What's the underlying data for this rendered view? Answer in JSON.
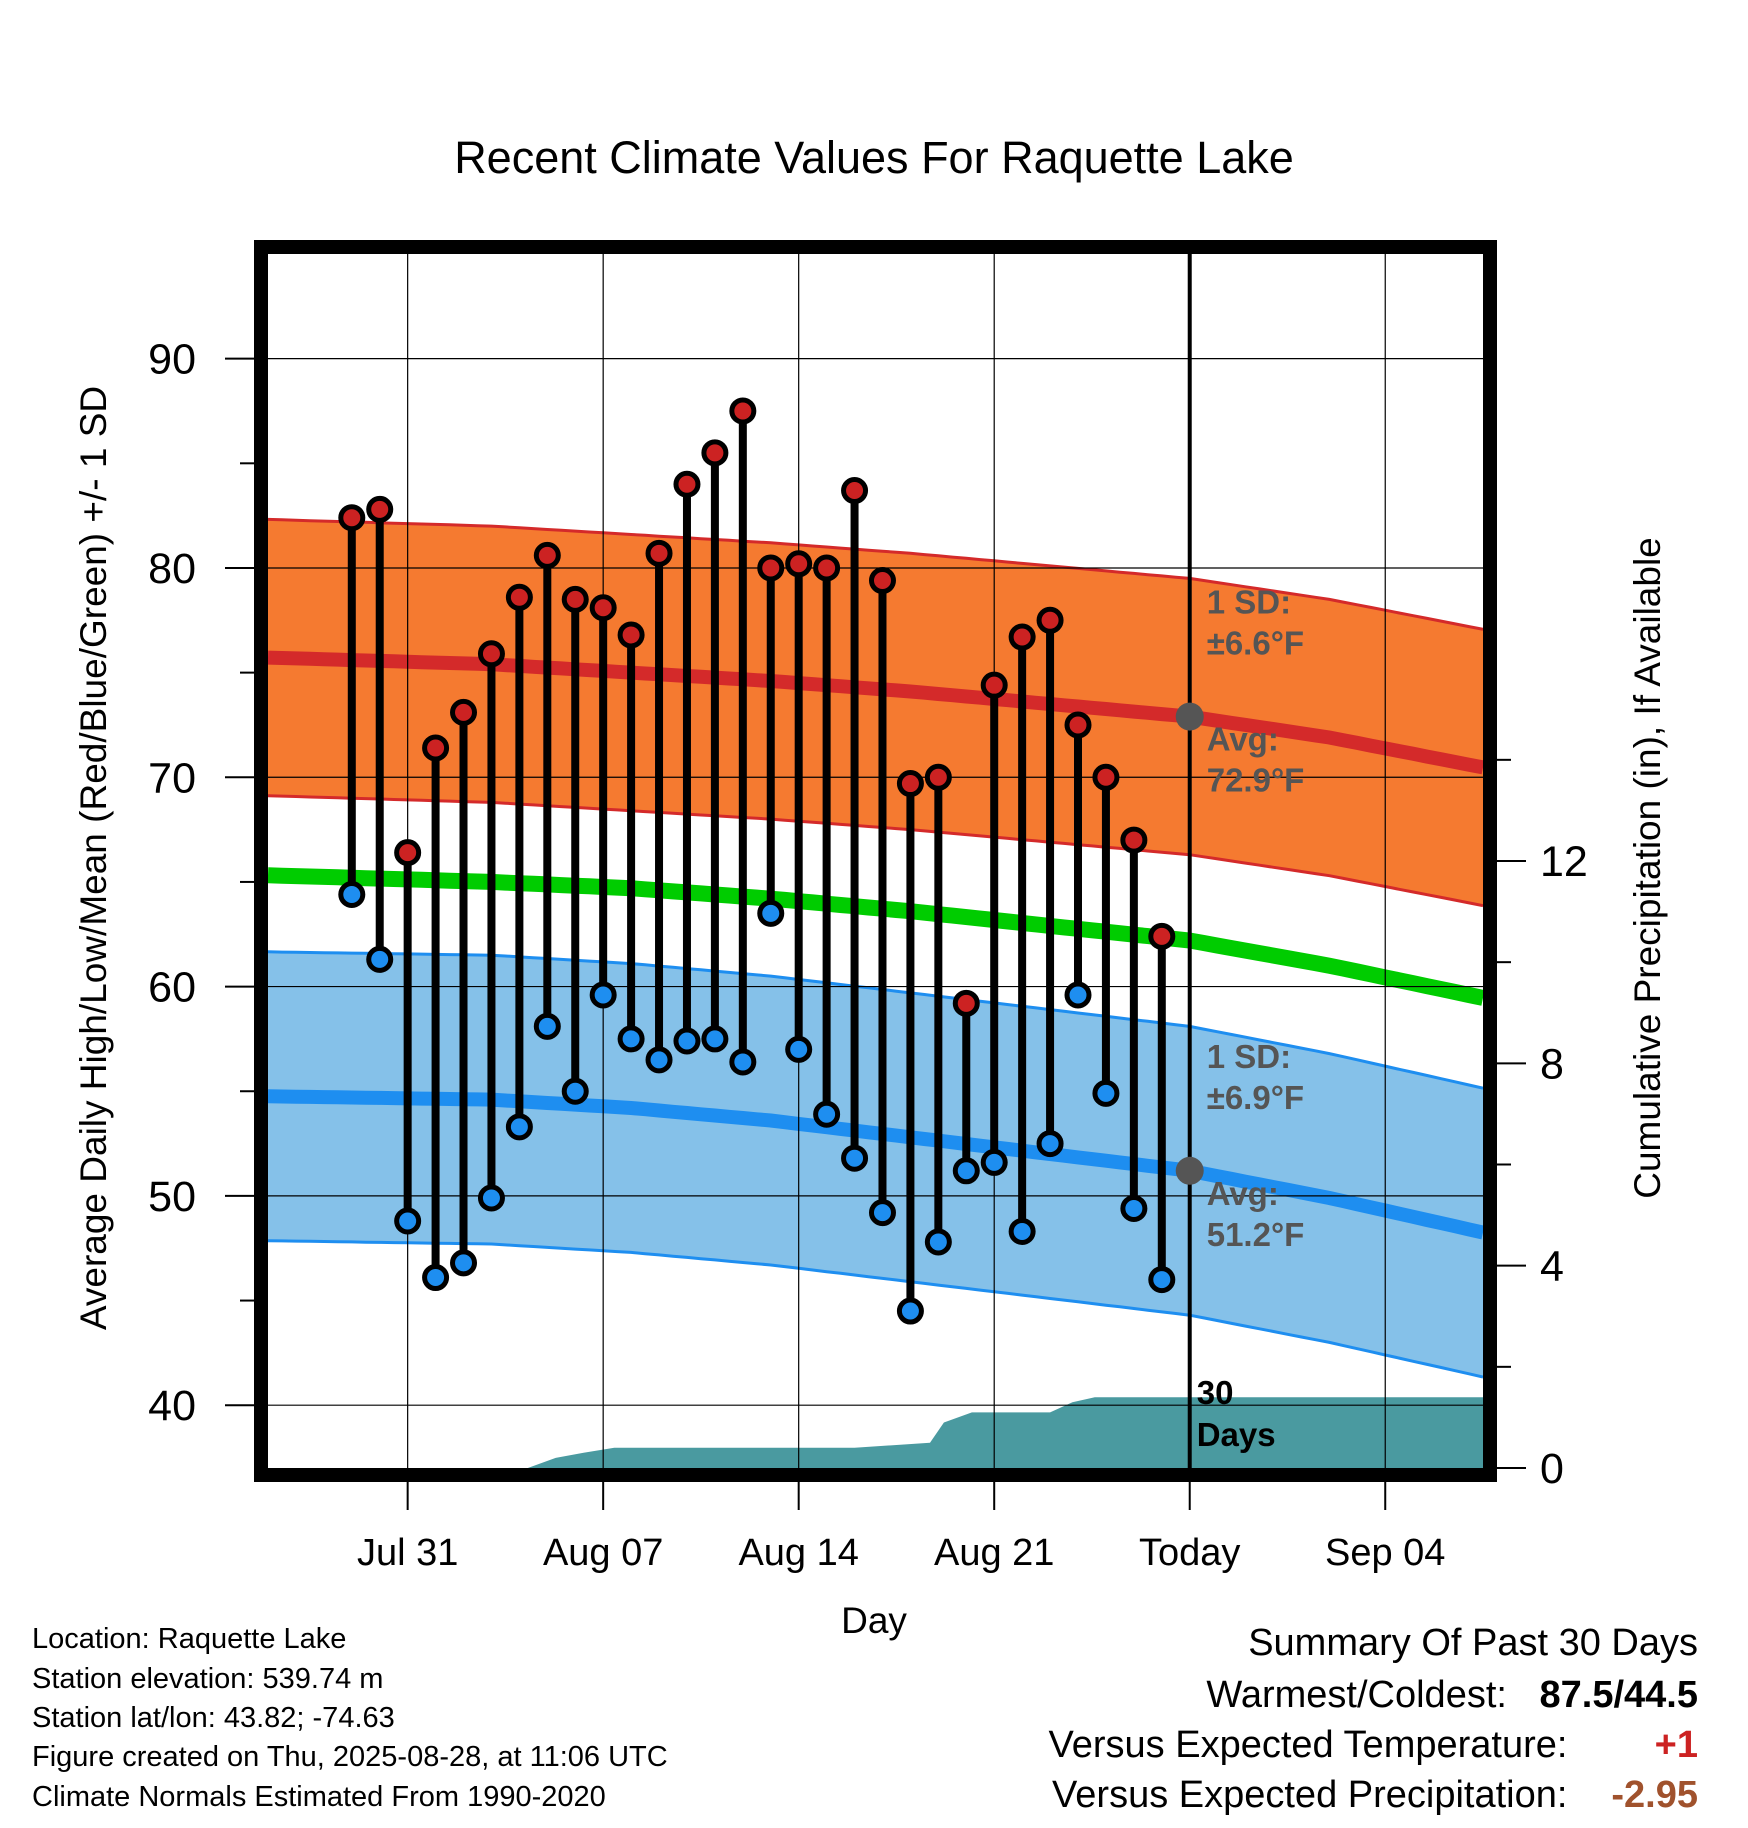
{
  "chart_data": {
    "type": "line",
    "title": "Recent Climate Values For Raquette Lake",
    "xlabel": "Day",
    "ylabel_left": "Average Daily High/Low/Mean (Red/Blue/Green) +/- 1 SD",
    "ylabel_right": "Cumulative Precipitation (in), If Available",
    "ylim": [
      37,
      95
    ],
    "ylim_right": [
      0,
      24
    ],
    "x_range_days": [
      -33,
      10.5
    ],
    "y_ticks": [
      40,
      50,
      60,
      70,
      80,
      90
    ],
    "y_ticks_right": [
      0,
      4,
      8,
      12
    ],
    "x_ticks": [
      {
        "label": "Jul 31",
        "day": -28
      },
      {
        "label": "Aug 07",
        "day": -21
      },
      {
        "label": "Aug 14",
        "day": -14
      },
      {
        "label": "Aug 21",
        "day": -7
      },
      {
        "label": "Today",
        "day": 0
      },
      {
        "label": "Sep 04",
        "day": 7
      }
    ],
    "days": [
      -30,
      -29,
      -28,
      -27,
      -26,
      -25,
      -24,
      -23,
      -22,
      -21,
      -20,
      -19,
      -18,
      -17,
      -16,
      -15,
      -14,
      -13,
      -12,
      -11,
      -10,
      -9,
      -8,
      -7,
      -6,
      -5,
      -4,
      -3,
      -2,
      -1
    ],
    "highs": [
      82.4,
      82.8,
      66.4,
      71.4,
      73.1,
      75.9,
      78.6,
      80.6,
      78.5,
      78.1,
      76.8,
      80.7,
      84.0,
      85.5,
      87.5,
      80.0,
      80.2,
      80.0,
      83.7,
      79.4,
      69.7,
      70.0,
      59.2,
      74.4,
      76.7,
      77.5,
      72.5,
      70.0,
      67.0,
      62.4
    ],
    "lows": [
      64.4,
      61.3,
      48.8,
      46.1,
      46.8,
      49.9,
      53.3,
      58.1,
      55.0,
      59.6,
      57.5,
      56.5,
      57.4,
      57.5,
      56.4,
      63.5,
      57.0,
      53.9,
      51.8,
      49.2,
      44.5,
      47.8,
      51.2,
      51.6,
      48.3,
      52.5,
      59.6,
      54.9,
      49.4,
      46.0
    ],
    "normals": {
      "days": [
        -30,
        -25,
        -20,
        -15,
        -10,
        -5,
        0,
        5,
        10
      ],
      "high_mean": [
        75.6,
        75.4,
        75.0,
        74.6,
        74.1,
        73.5,
        72.9,
        71.9,
        70.6
      ],
      "high_sd": 6.6,
      "low_mean": [
        54.7,
        54.6,
        54.2,
        53.6,
        52.8,
        52.0,
        51.2,
        49.9,
        48.4
      ],
      "low_sd": 6.9,
      "mean_line": [
        65.2,
        65.0,
        64.7,
        64.2,
        63.6,
        62.9,
        62.2,
        61.0,
        59.6
      ]
    },
    "precip_cumulative": {
      "days": [
        -33,
        -23.7,
        -22.7,
        -21.7,
        -20.6,
        -12,
        -9.3,
        -8.8,
        -7.8,
        -7.2,
        -5,
        -4.2,
        -3.4,
        -3.3,
        -2.5,
        10.5
      ],
      "values": [
        0,
        0,
        0.2,
        0.3,
        0.4,
        0.4,
        0.5,
        0.9,
        1.1,
        1.1,
        1.1,
        1.3,
        1.4,
        1.4,
        1.4,
        1.4
      ]
    },
    "series": [
      {
        "name": "Red",
        "color": "#cc2222"
      },
      {
        "name": "Blue",
        "color": "#1e8ef0"
      },
      {
        "name": "Green",
        "color": "#00cc00"
      }
    ],
    "annotations": {
      "high_sd_l1": "1 SD:",
      "high_sd_l2": "±6.6°F",
      "high_avg_l1": "Avg:",
      "high_avg_l2": "72.9°F",
      "low_sd_l1": "1 SD:",
      "low_sd_l2": "±6.9°F",
      "low_avg_l1": "Avg:",
      "low_avg_l2": "51.2°F",
      "precip_l1": "30",
      "precip_l2": "Days"
    },
    "colors": {
      "high_band": "#f57a30",
      "high_line": "#d42a2a",
      "low_band": "#85c1e9",
      "low_line": "#1e8ef0",
      "mean_line": "#00cc00",
      "precip": "#4a9aa0",
      "marker_high": "#cc2222",
      "marker_low": "#1e8ef0",
      "annotation_text": "#555555"
    }
  },
  "info": {
    "location": "Location: Raquette Lake",
    "elevation": "Station elevation: 539.74 m",
    "latlon": "Station lat/lon: 43.82; -74.63",
    "created": "Figure created on Thu, 2025-08-28, at 11:06 UTC",
    "normals": "Climate Normals Estimated From 1990-2020"
  },
  "summary": {
    "heading": "Summary Of Past 30 Days",
    "warm_cold_label": "Warmest/Coldest:",
    "warm_cold_value": "87.5/44.5",
    "temp_label": "Versus Expected Temperature:",
    "temp_value": "+1",
    "precip_label": "Versus Expected Precipitation:",
    "precip_value": "-2.95",
    "temp_color": "#cc2222",
    "precip_color": "#a0522d"
  }
}
